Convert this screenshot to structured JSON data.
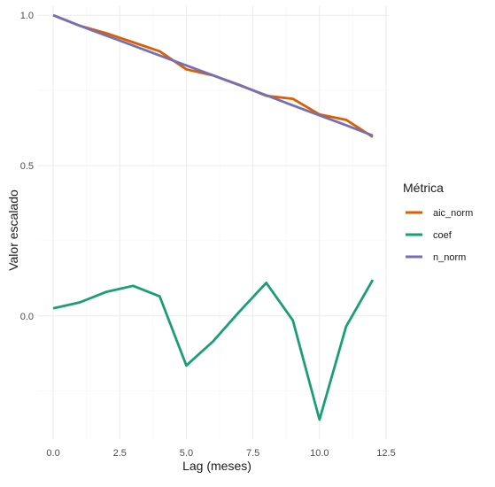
{
  "chart_data": {
    "type": "line",
    "title": "",
    "xlabel": "Lag (meses)",
    "ylabel": "Valor escalado",
    "xlim": [
      -0.6,
      12.6
    ],
    "ylim": [
      -0.41,
      1.03
    ],
    "x_ticks": [
      0.0,
      2.5,
      5.0,
      7.5,
      10.0,
      12.5
    ],
    "x_tick_labels": [
      "0.0",
      "2.5",
      "5.0",
      "7.5",
      "10.0",
      "12.5"
    ],
    "y_ticks": [
      0.0,
      0.5,
      1.0
    ],
    "y_tick_labels": [
      "0.0",
      "0.5",
      "1.0"
    ],
    "grid": true,
    "legend": {
      "title": "Métrica",
      "position": "right"
    },
    "x": [
      0,
      1,
      2,
      3,
      4,
      5,
      6,
      7,
      8,
      9,
      10,
      11,
      12
    ],
    "series": [
      {
        "name": "aic_norm",
        "color": "#d95f02",
        "values": [
          1.0,
          0.965,
          0.94,
          0.91,
          0.88,
          0.82,
          0.8,
          0.768,
          0.732,
          0.722,
          0.67,
          0.652,
          0.595
        ]
      },
      {
        "name": "coef",
        "color": "#1b9e77",
        "values": [
          0.025,
          0.045,
          0.08,
          0.1,
          0.065,
          -0.165,
          -0.085,
          0.015,
          0.11,
          -0.015,
          -0.345,
          -0.035,
          0.12
        ]
      },
      {
        "name": "n_norm",
        "color": "#7570b3",
        "values": [
          1.0,
          0.965,
          0.932,
          0.899,
          0.866,
          0.833,
          0.8,
          0.767,
          0.734,
          0.7,
          0.667,
          0.634,
          0.6
        ]
      }
    ]
  }
}
